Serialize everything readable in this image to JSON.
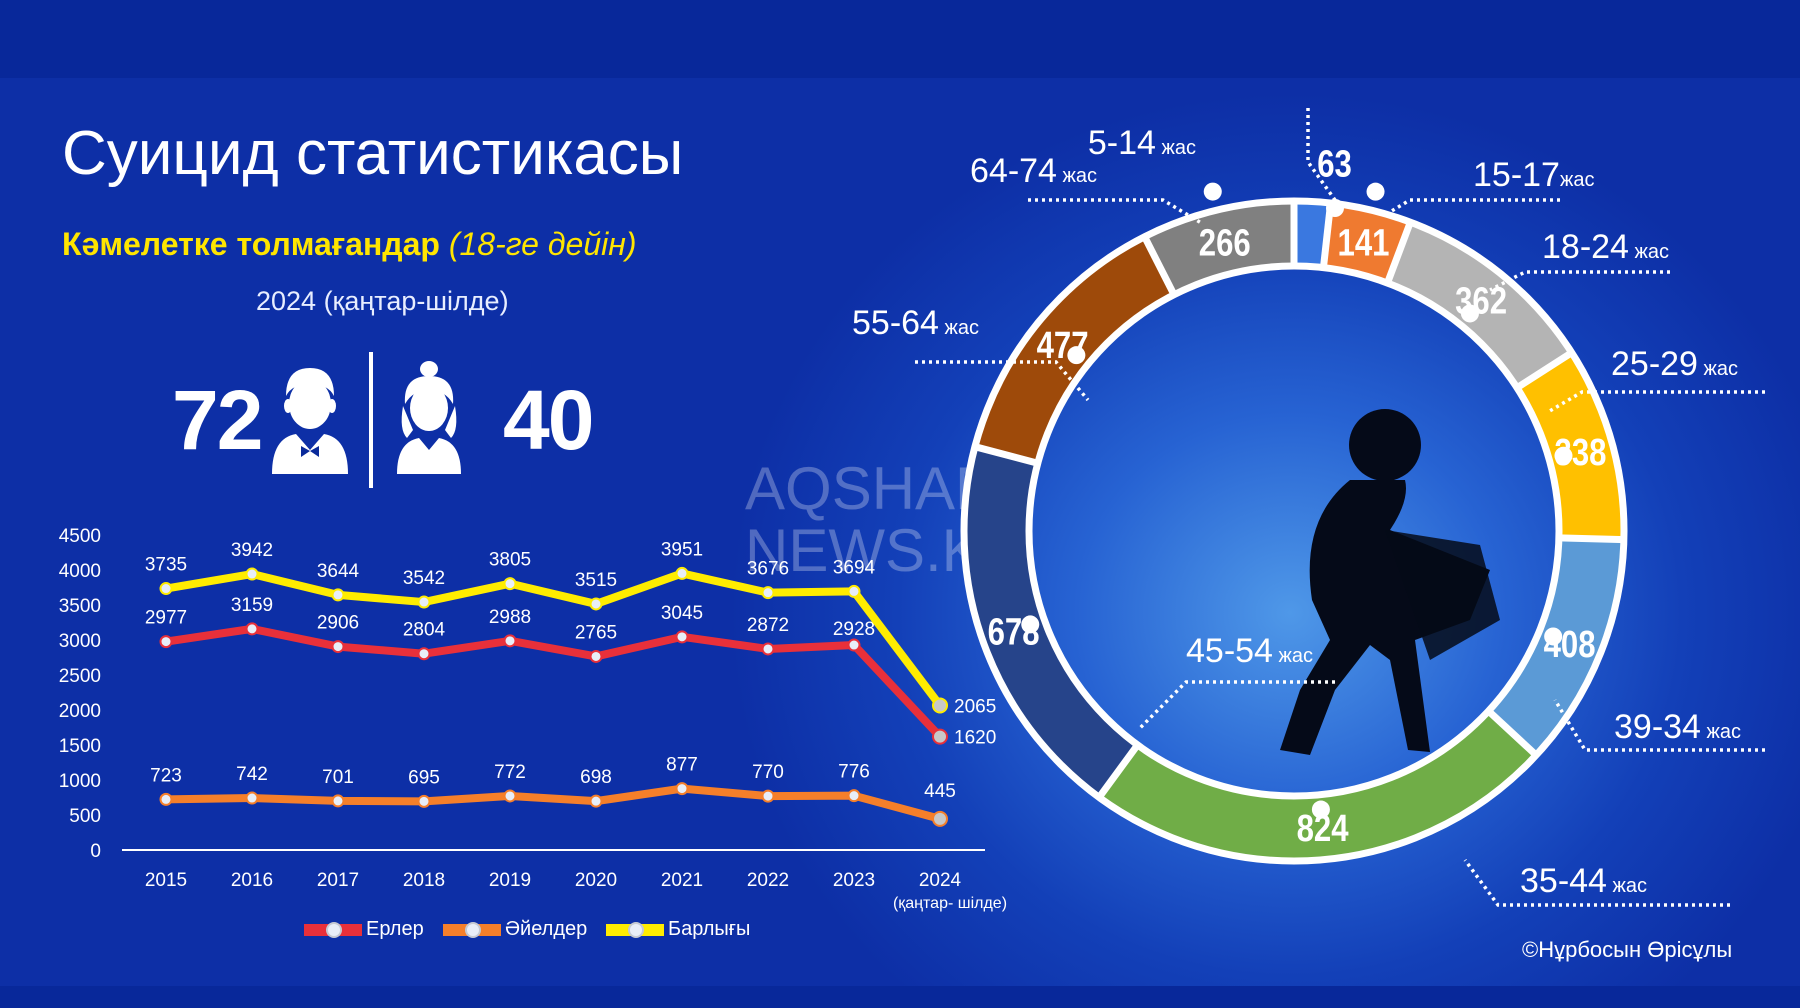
{
  "header": {
    "title": "Суицид статистикасы",
    "subtitle_main": "Кәмелетке толмағандар",
    "subtitle_paren": "(18-ге дейін)",
    "period": "2024 (қаңтар-шілде)"
  },
  "minors": {
    "boys": "72",
    "girls": "40",
    "boy_icon": "male-person-icon",
    "girl_icon": "female-person-icon"
  },
  "watermark": {
    "line1": "AQSHAM",
    "line2": "NEWS.KZ"
  },
  "copyright": "©Нұрбосын Өрісұлы",
  "colors": {
    "men": "#e8303a",
    "women": "#f57f2a",
    "total": "#ffec00",
    "background": "#0a2a9a"
  },
  "chart_data": [
    {
      "type": "line",
      "categories": [
        "2015",
        "2016",
        "2017",
        "2018",
        "2019",
        "2020",
        "2021",
        "2022",
        "2023",
        "2024"
      ],
      "category_note": "(қаңтар- шілде)",
      "ylim": [
        0,
        4500
      ],
      "yticks": [
        0,
        500,
        1000,
        1500,
        2000,
        2500,
        3000,
        3500,
        4000,
        4500
      ],
      "series": [
        {
          "name": "Ерлер",
          "color": "#e8303a",
          "values": [
            2977,
            3159,
            2906,
            2804,
            2988,
            2765,
            3045,
            2872,
            2928,
            1620
          ]
        },
        {
          "name": "Әйелдер",
          "color": "#f57f2a",
          "values": [
            723,
            742,
            701,
            695,
            772,
            698,
            877,
            770,
            776,
            445
          ]
        },
        {
          "name": "Барлығы",
          "color": "#ffec00",
          "values": [
            3735,
            3942,
            3644,
            3542,
            3805,
            3515,
            3951,
            3676,
            3694,
            2065
          ]
        }
      ],
      "legend": "bottom",
      "grid": false
    },
    {
      "type": "pie",
      "style": "donut",
      "segments": [
        {
          "label": "5-14",
          "unit": "жас",
          "value": 63,
          "color": "#3a78e0"
        },
        {
          "label": "15-17",
          "unit": "жас",
          "value": 141,
          "color": "#ef7a30"
        },
        {
          "label": "18-24",
          "unit": "жас",
          "value": 362,
          "color": "#b4b4b4"
        },
        {
          "label": "25-29",
          "unit": "жас",
          "value": 338,
          "color": "#ffc000"
        },
        {
          "label": "39-34",
          "unit": "жас",
          "value": 408,
          "color": "#5b9ad6"
        },
        {
          "label": "35-44",
          "unit": "жас",
          "value": 824,
          "color": "#70ad47"
        },
        {
          "label": "45-54",
          "unit": "жас",
          "value": 678,
          "color": "#26448a"
        },
        {
          "label": "55-64",
          "unit": "жас",
          "value": 477,
          "color": "#9e4a0a"
        },
        {
          "label": "64-74",
          "unit": "жас",
          "value": 266,
          "color": "#808080"
        }
      ],
      "center_icon": "sad-person-silhouette-icon"
    }
  ]
}
